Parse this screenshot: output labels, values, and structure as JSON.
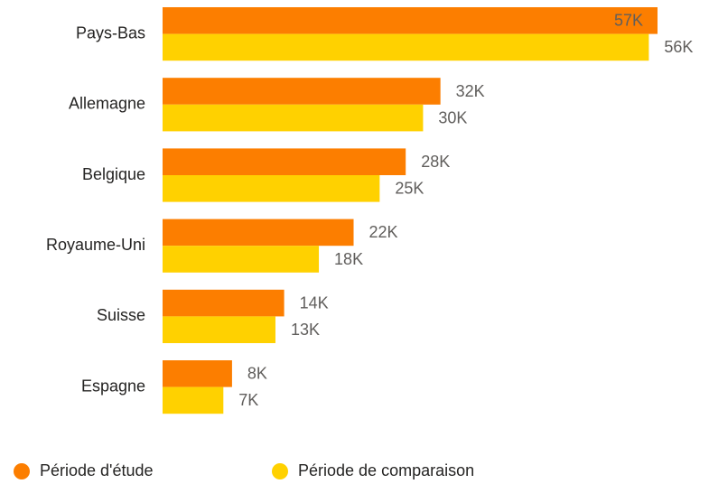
{
  "chart_data": {
    "type": "hbar",
    "categories": [
      "Pays-Bas",
      "Allemagne",
      "Belgique",
      "Royaume-Uni",
      "Suisse",
      "Espagne"
    ],
    "series": [
      {
        "name": "Période d'étude",
        "color": "#fc7e00",
        "values": [
          57000,
          32000,
          28000,
          22000,
          14000,
          8000
        ],
        "value_labels": [
          "57K",
          "32K",
          "28K",
          "22K",
          "14K",
          "8K"
        ]
      },
      {
        "name": "Période de comparaison",
        "color": "#ffd100",
        "values": [
          56000,
          30000,
          25000,
          18000,
          13000,
          7000
        ],
        "value_labels": [
          "56K",
          "30K",
          "25K",
          "18K",
          "13K",
          "7K"
        ]
      }
    ],
    "legend": "bottom-left"
  }
}
